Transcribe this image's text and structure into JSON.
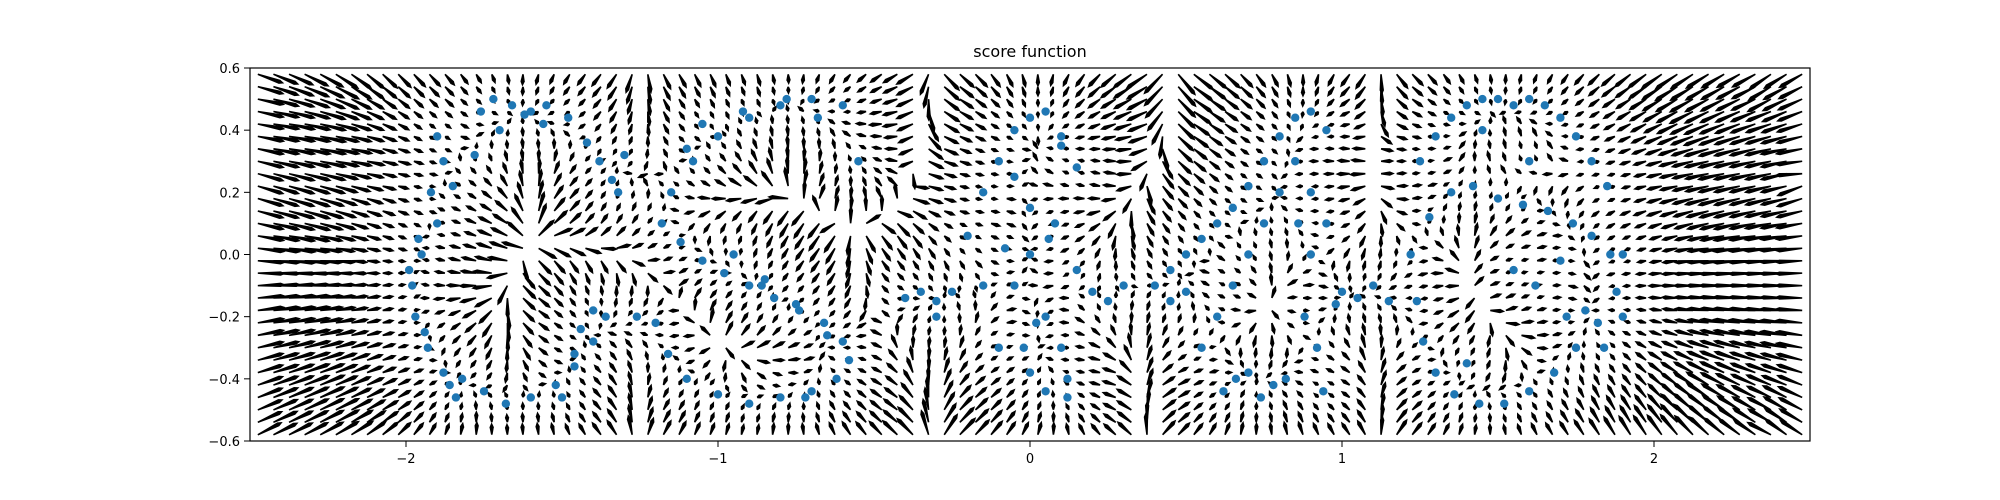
{
  "chart_data": {
    "type": "scatter",
    "title": "score function",
    "xlabel": "",
    "ylabel": "",
    "xlim": [
      -2.5,
      2.5
    ],
    "ylim": [
      -0.6,
      0.6
    ],
    "xticks": [
      -2,
      -1,
      0,
      1,
      2
    ],
    "xtick_labels": [
      "−2",
      "−1",
      "0",
      "1",
      "2"
    ],
    "yticks": [
      -0.6,
      -0.4,
      -0.2,
      0.0,
      0.2,
      0.4,
      0.6
    ],
    "ytick_labels": [
      "−0.6",
      "−0.4",
      "−0.2",
      "0.0",
      "0.2",
      "0.4",
      "0.6"
    ],
    "grid": false,
    "point_color": "#1f77b4",
    "arrow_color": "#000000",
    "series": [
      {
        "values_description_from_figure": "scatter samples forming the letters C, S, A, S, G",
        "x": [
          -1.9,
          -1.95,
          -1.98,
          -1.97,
          -1.93,
          -1.88,
          -1.85,
          -1.78,
          -1.7,
          -1.62,
          -1.55,
          -1.48,
          -1.42,
          -1.38,
          -1.34,
          -1.32,
          -1.36,
          -1.4,
          -1.46,
          -1.52,
          -1.6,
          -1.68,
          -1.75,
          -1.82,
          -1.88,
          -1.92,
          -1.96,
          -1.99,
          -1.94,
          -1.86,
          -1.76,
          -1.66,
          -1.56,
          -1.46,
          -1.4,
          -1.9,
          -1.84,
          -1.72,
          -1.6,
          -1.5,
          -1.44,
          -1.3,
          -1.26,
          -0.6,
          -0.7,
          -0.8,
          -0.9,
          -1.0,
          -1.08,
          -1.15,
          -1.18,
          -1.12,
          -1.05,
          -0.98,
          -0.9,
          -0.82,
          -0.74,
          -0.66,
          -0.6,
          -0.58,
          -0.62,
          -0.7,
          -0.8,
          -0.9,
          -1.0,
          -1.1,
          -1.16,
          -1.2,
          -0.95,
          -0.85,
          -0.75,
          -0.65,
          -0.55,
          -1.05,
          -0.92,
          -0.78,
          -0.68,
          -1.1,
          -0.86,
          -0.72,
          -0.25,
          -0.2,
          -0.15,
          -0.1,
          -0.05,
          0.0,
          0.05,
          0.1,
          0.15,
          0.0,
          -0.05,
          0.05,
          0.1,
          -0.1,
          0.0,
          0.05,
          0.12,
          -0.15,
          -0.3,
          -0.35,
          -0.4,
          -0.3,
          0.2,
          0.25,
          0.3,
          0.15,
          0.0,
          -0.05,
          0.08,
          0.02,
          0.1,
          -0.02,
          0.06,
          0.12,
          -0.08,
          0.4,
          0.45,
          0.5,
          0.55,
          0.6,
          0.65,
          0.7,
          0.75,
          0.8,
          0.85,
          0.9,
          0.95,
          0.85,
          0.8,
          0.75,
          0.7,
          0.65,
          0.6,
          0.55,
          0.5,
          0.45,
          0.9,
          0.95,
          1.0,
          1.05,
          1.1,
          1.15,
          0.88,
          0.92,
          0.82,
          0.78,
          0.7,
          0.62,
          0.9,
          0.94,
          0.86,
          0.98,
          0.74,
          0.66,
          1.25,
          1.3,
          1.35,
          1.4,
          1.45,
          1.5,
          1.55,
          1.6,
          1.65,
          1.7,
          1.75,
          1.8,
          1.85,
          1.9,
          1.88,
          1.82,
          1.75,
          1.68,
          1.6,
          1.52,
          1.44,
          1.36,
          1.3,
          1.26,
          1.24,
          1.22,
          1.28,
          1.35,
          1.42,
          1.5,
          1.58,
          1.66,
          1.74,
          1.8,
          1.86,
          1.9,
          1.55,
          1.62,
          1.7,
          1.78,
          1.84,
          1.45,
          1.4,
          1.6,
          1.72
        ],
        "y": [
          0.1,
          0.0,
          -0.1,
          -0.2,
          -0.3,
          -0.38,
          0.22,
          0.32,
          0.4,
          0.45,
          0.48,
          0.44,
          0.36,
          0.3,
          0.24,
          0.2,
          -0.2,
          -0.28,
          -0.36,
          -0.42,
          -0.46,
          -0.48,
          -0.44,
          -0.4,
          0.3,
          0.2,
          0.05,
          -0.05,
          -0.25,
          -0.42,
          0.46,
          0.48,
          0.42,
          -0.32,
          -0.18,
          0.38,
          -0.46,
          0.5,
          0.46,
          -0.46,
          -0.24,
          0.32,
          -0.2,
          0.48,
          0.5,
          0.48,
          0.44,
          0.38,
          0.3,
          0.2,
          0.1,
          0.04,
          -0.02,
          -0.06,
          -0.1,
          -0.14,
          -0.18,
          -0.22,
          -0.28,
          -0.34,
          -0.4,
          -0.44,
          -0.46,
          -0.48,
          -0.45,
          -0.4,
          -0.32,
          -0.22,
          0.0,
          -0.08,
          -0.16,
          -0.26,
          0.3,
          0.42,
          0.46,
          0.5,
          0.44,
          0.34,
          -0.1,
          -0.46,
          -0.12,
          0.06,
          0.2,
          0.3,
          0.4,
          0.44,
          0.46,
          0.38,
          0.28,
          0.0,
          -0.1,
          -0.2,
          -0.3,
          -0.3,
          -0.38,
          -0.44,
          -0.4,
          -0.1,
          -0.15,
          -0.12,
          -0.14,
          -0.2,
          -0.12,
          -0.15,
          -0.1,
          -0.05,
          0.15,
          0.25,
          0.1,
          -0.22,
          0.35,
          -0.3,
          0.05,
          -0.46,
          0.02,
          -0.1,
          -0.05,
          0.0,
          0.05,
          0.1,
          0.15,
          0.22,
          0.3,
          0.38,
          0.44,
          0.46,
          0.4,
          0.3,
          0.2,
          0.1,
          0.0,
          -0.1,
          -0.2,
          -0.3,
          -0.12,
          -0.15,
          0.2,
          0.1,
          -0.12,
          -0.14,
          -0.1,
          -0.15,
          -0.2,
          -0.3,
          -0.4,
          -0.42,
          -0.38,
          -0.44,
          0.0,
          -0.44,
          0.1,
          -0.16,
          -0.46,
          -0.4,
          0.3,
          0.38,
          0.44,
          0.48,
          0.5,
          0.5,
          0.48,
          0.5,
          0.48,
          0.44,
          0.38,
          0.3,
          0.22,
          0.0,
          -0.12,
          -0.22,
          -0.3,
          -0.38,
          -0.44,
          -0.48,
          -0.48,
          -0.45,
          -0.38,
          -0.28,
          -0.15,
          0.0,
          0.12,
          0.2,
          0.22,
          0.18,
          0.16,
          0.14,
          0.1,
          0.06,
          0.0,
          -0.2,
          -0.05,
          -0.1,
          -0.02,
          -0.18,
          -0.3,
          0.4,
          -0.35,
          0.3,
          -0.2
        ]
      }
    ]
  }
}
